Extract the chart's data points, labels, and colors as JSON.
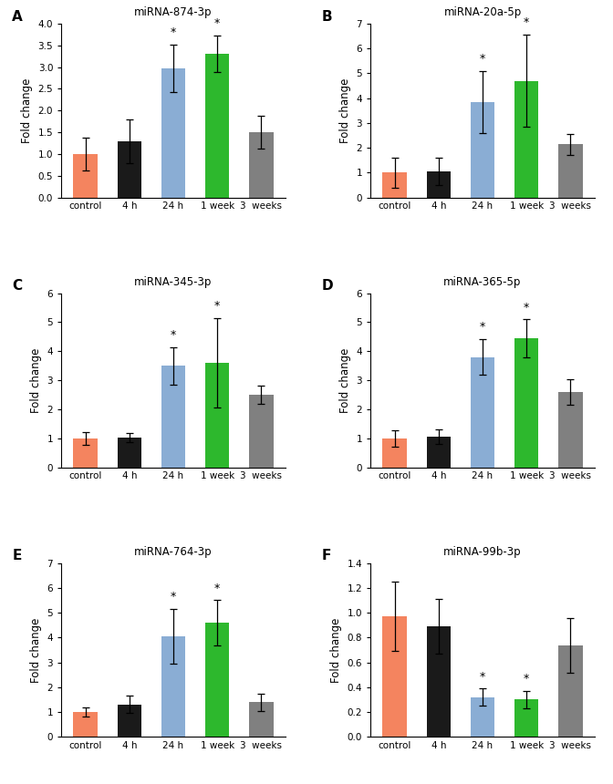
{
  "panels": [
    {
      "label": "A",
      "title": "miRNA-874-3p",
      "categories": [
        "control",
        "4 h",
        "24 h",
        "1 week",
        "3  weeks"
      ],
      "values": [
        1.0,
        1.3,
        2.97,
        3.3,
        1.5
      ],
      "errors": [
        0.38,
        0.5,
        0.55,
        0.42,
        0.38
      ],
      "colors": [
        "#F4845F",
        "#1a1a1a",
        "#8aadd4",
        "#2db82d",
        "#808080"
      ],
      "ylim": [
        0,
        4.0
      ],
      "yticks": [
        0,
        0.5,
        1.0,
        1.5,
        2.0,
        2.5,
        3.0,
        3.5,
        4.0
      ],
      "sig": [
        false,
        false,
        true,
        true,
        false
      ]
    },
    {
      "label": "B",
      "title": "miRNA-20a-5p",
      "categories": [
        "control",
        "4 h",
        "24 h",
        "1 week",
        "3  weeks"
      ],
      "values": [
        1.0,
        1.05,
        3.85,
        4.7,
        2.15
      ],
      "errors": [
        0.6,
        0.55,
        1.25,
        1.85,
        0.42
      ],
      "colors": [
        "#F4845F",
        "#1a1a1a",
        "#8aadd4",
        "#2db82d",
        "#808080"
      ],
      "ylim": [
        0,
        7
      ],
      "yticks": [
        0,
        1,
        2,
        3,
        4,
        5,
        6,
        7
      ],
      "sig": [
        false,
        false,
        true,
        true,
        false
      ]
    },
    {
      "label": "C",
      "title": "miRNA-345-3p",
      "categories": [
        "control",
        "4 h",
        "24 h",
        "1 week",
        "3  weeks"
      ],
      "values": [
        1.0,
        1.02,
        3.5,
        3.6,
        2.5
      ],
      "errors": [
        0.22,
        0.15,
        0.65,
        1.55,
        0.32
      ],
      "colors": [
        "#F4845F",
        "#1a1a1a",
        "#8aadd4",
        "#2db82d",
        "#808080"
      ],
      "ylim": [
        0,
        6
      ],
      "yticks": [
        0,
        1,
        2,
        3,
        4,
        5,
        6
      ],
      "sig": [
        false,
        false,
        true,
        true,
        false
      ]
    },
    {
      "label": "D",
      "title": "miRNA-365-5p",
      "categories": [
        "control",
        "4 h",
        "24 h",
        "1 week",
        "3  weeks"
      ],
      "values": [
        1.0,
        1.05,
        3.8,
        4.45,
        2.6
      ],
      "errors": [
        0.28,
        0.25,
        0.62,
        0.65,
        0.45
      ],
      "colors": [
        "#F4845F",
        "#1a1a1a",
        "#8aadd4",
        "#2db82d",
        "#808080"
      ],
      "ylim": [
        0,
        6
      ],
      "yticks": [
        0,
        1,
        2,
        3,
        4,
        5,
        6
      ],
      "sig": [
        false,
        false,
        true,
        true,
        false
      ]
    },
    {
      "label": "E",
      "title": "miRNA-764-3p",
      "categories": [
        "control",
        "4 h",
        "24 h",
        "1 week",
        "3  weeks"
      ],
      "values": [
        1.0,
        1.3,
        4.05,
        4.6,
        1.4
      ],
      "errors": [
        0.18,
        0.35,
        1.1,
        0.9,
        0.35
      ],
      "colors": [
        "#F4845F",
        "#1a1a1a",
        "#8aadd4",
        "#2db82d",
        "#808080"
      ],
      "ylim": [
        0,
        7
      ],
      "yticks": [
        0,
        1,
        2,
        3,
        4,
        5,
        6,
        7
      ],
      "sig": [
        false,
        false,
        true,
        true,
        false
      ]
    },
    {
      "label": "F",
      "title": "miRNA-99b-3p",
      "categories": [
        "control",
        "4 h",
        "24 h",
        "1 week",
        "3  weeks"
      ],
      "values": [
        0.97,
        0.89,
        0.32,
        0.3,
        0.74
      ],
      "errors": [
        0.28,
        0.22,
        0.07,
        0.07,
        0.22
      ],
      "colors": [
        "#F4845F",
        "#1a1a1a",
        "#8aadd4",
        "#2db82d",
        "#808080"
      ],
      "ylim": [
        0,
        1.4
      ],
      "yticks": [
        0,
        0.2,
        0.4,
        0.6,
        0.8,
        1.0,
        1.2,
        1.4
      ],
      "sig": [
        false,
        false,
        true,
        true,
        false
      ]
    }
  ],
  "ylabel": "Fold change",
  "bar_width": 0.55,
  "capsize": 3,
  "background_color": "#ffffff",
  "tick_fontsize": 7.5,
  "label_fontsize": 8.5,
  "title_fontsize": 8.5,
  "panel_label_fontsize": 11
}
